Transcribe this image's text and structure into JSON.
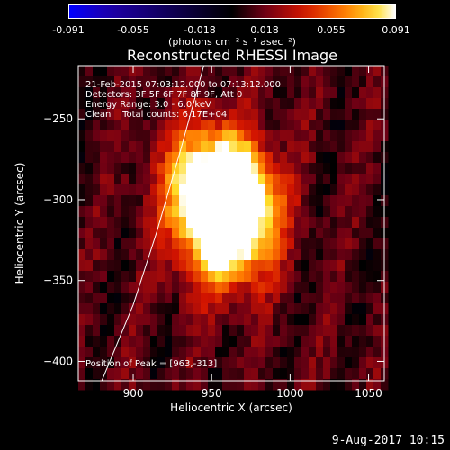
{
  "title": "Reconstructed RHESSI Image",
  "colorbar": {
    "tick_labels": [
      "-0.091",
      "-0.055",
      "-0.018",
      "0.018",
      "0.055",
      "0.091"
    ],
    "tick_values": [
      -0.091,
      -0.055,
      -0.018,
      0.018,
      0.055,
      0.091
    ],
    "range": [
      -0.091,
      0.091
    ],
    "units": "(photons cm⁻² s⁻¹ asec⁻²)",
    "colormap": "blue-black-red-yellow-white"
  },
  "annotations": {
    "line1": "21-Feb-2015 07:03:12.000 to 07:13:12.000",
    "line2": "Detectors: 3F 5F 6F 7F 8F 9F, Att 0",
    "line3": "Energy Range: 3.0 - 6.0 keV",
    "line4": "Clean    Total counts: 6.17E+04",
    "peak": "Position of Peak = [963,-313]"
  },
  "footer": "9-Aug-2017 10:15",
  "chart_data": {
    "type": "heatmap",
    "xlabel": "Heliocentric X (arcsec)",
    "ylabel": "Heliocentric Y (arcsec)",
    "xlim": [
      865,
      1060
    ],
    "ylim": [
      -412,
      -217
    ],
    "x_ticks": [
      900,
      950,
      1000,
      1050
    ],
    "y_ticks": [
      -250,
      -300,
      -350,
      -400
    ],
    "peak_position": [
      963,
      -313
    ],
    "sources": [
      {
        "x": 958,
        "y": -293,
        "intensity": 0.088
      },
      {
        "x": 963,
        "y": -313,
        "intensity": 0.091
      },
      {
        "x": 942,
        "y": -285,
        "intensity": 0.05
      },
      {
        "x": 955,
        "y": -335,
        "intensity": 0.04
      }
    ],
    "limb_curve": [
      [
        945,
        -217
      ],
      [
        930,
        -270
      ],
      [
        915,
        -320
      ],
      [
        900,
        -365
      ],
      [
        880,
        -412
      ]
    ],
    "background_level": 0.012
  }
}
